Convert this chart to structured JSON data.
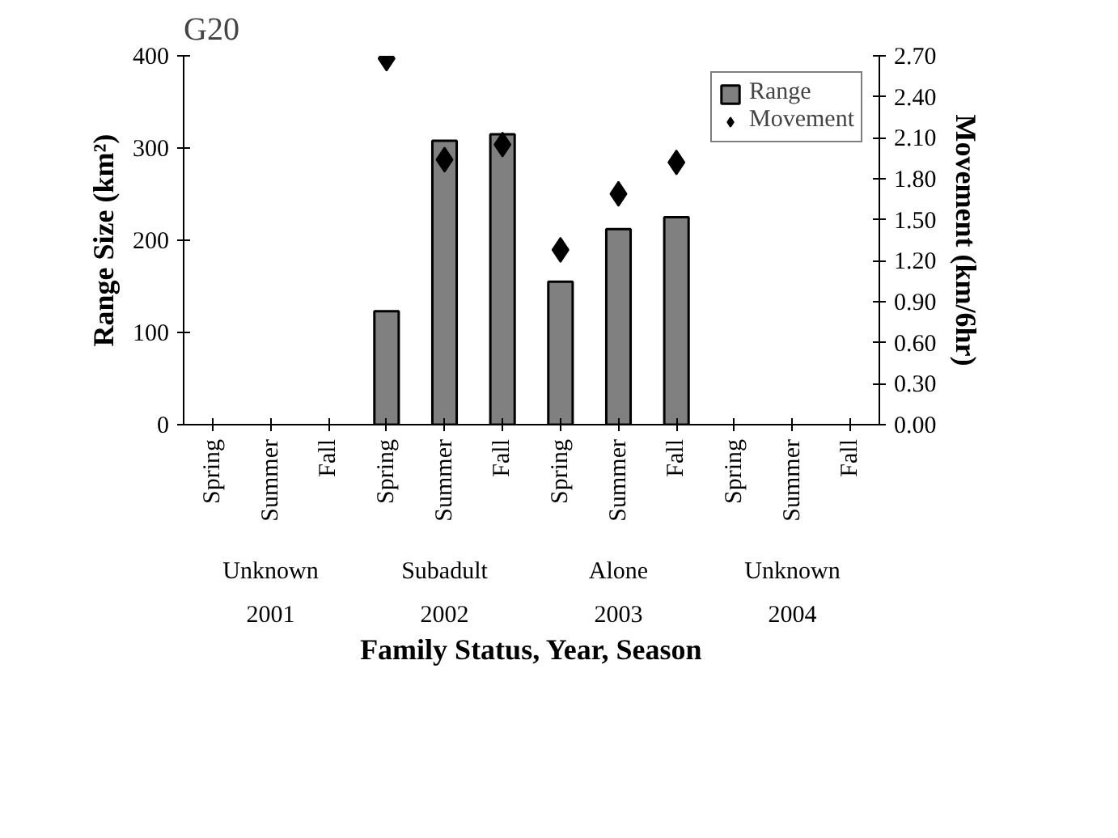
{
  "chart_data": {
    "type": "bar",
    "title": "G20",
    "xlabel": "Family Status, Year, Season",
    "ylabel": "Range Size (km²)",
    "y2label": "Movement (km/6hr)",
    "categories": [
      "Spring",
      "Summer",
      "Fall",
      "Spring",
      "Summer",
      "Fall",
      "Spring",
      "Summer",
      "Fall",
      "Spring",
      "Summer",
      "Fall"
    ],
    "annotations": [
      "Unknown",
      "2001",
      "Subadult",
      "2002",
      "Alone",
      "2003",
      "Unknown",
      "2004"
    ],
    "series": [
      {
        "name": "Range",
        "color": "#808080",
        "values": [
          null,
          null,
          null,
          123,
          308,
          315,
          155,
          212,
          225,
          null,
          null,
          null
        ]
      },
      {
        "name": "Movement",
        "type": "scatter",
        "axis": "y2",
        "marker": "diamond",
        "color": "#000000",
        "values": [
          null,
          null,
          null,
          2.68,
          1.94,
          2.05,
          1.28,
          1.69,
          1.92,
          null,
          null,
          null
        ]
      }
    ],
    "ylim": [
      0,
      400
    ],
    "yticks": [
      0,
      100,
      200,
      300,
      400
    ],
    "y2lim": [
      0,
      2.7
    ],
    "y2ticks": [
      {
        "value": 0,
        "label": "0.00"
      },
      {
        "value": 0.3,
        "label": "0.30"
      },
      {
        "value": 0.6,
        "label": "0.60"
      },
      {
        "value": 0.9,
        "label": "0.90"
      },
      {
        "value": 1.2,
        "label": "1.20"
      },
      {
        "value": 1.5,
        "label": "1.50"
      },
      {
        "value": 1.8,
        "label": "1.80"
      },
      {
        "value": 2.1,
        "label": "2.10"
      },
      {
        "value": 2.4,
        "label": "2.40"
      },
      {
        "value": 2.7,
        "label": "2.70"
      }
    ],
    "legend": "top right",
    "grid": false
  }
}
